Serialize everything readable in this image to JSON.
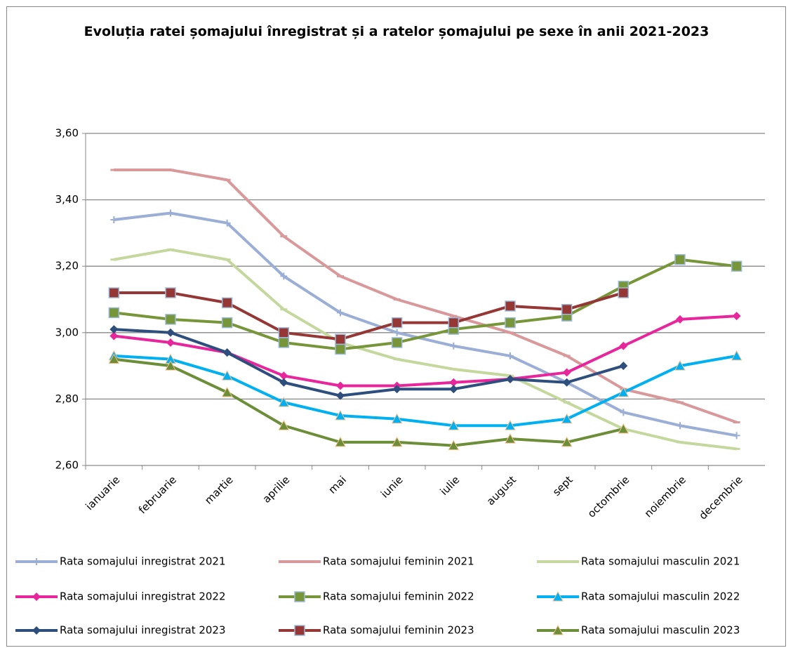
{
  "chart_data": {
    "type": "line",
    "title": "Evoluția ratei șomajului înregistrat și a ratelor șomajului pe sexe în anii 2021-2023",
    "categories": [
      "ianuarie",
      "februarie",
      "martie",
      "aprilie",
      "mai",
      "iunie",
      "iulie",
      "august",
      "sept",
      "octombrie",
      "noiembrie",
      "decembrie"
    ],
    "ylim": [
      2.6,
      3.6
    ],
    "yticks": [
      {
        "value": 2.6,
        "label": "2,60"
      },
      {
        "value": 2.8,
        "label": "2,80"
      },
      {
        "value": 3.0,
        "label": "3,00"
      },
      {
        "value": 3.2,
        "label": "3,20"
      },
      {
        "value": 3.4,
        "label": "3,40"
      },
      {
        "value": 3.6,
        "label": "3,60"
      }
    ],
    "grid": true,
    "legend": "bottom",
    "series": [
      {
        "name": "Rata somajului inregistrat 2021",
        "color": "#9aaed6",
        "marker": "plus",
        "values": [
          3.34,
          3.36,
          3.33,
          3.17,
          3.06,
          3.0,
          2.96,
          2.93,
          2.85,
          2.76,
          2.72,
          2.69
        ]
      },
      {
        "name": "Rata somajului feminin 2021",
        "color": "#d9999a",
        "marker": "dash",
        "values": [
          3.49,
          3.49,
          3.46,
          3.29,
          3.17,
          3.1,
          3.05,
          3.0,
          2.93,
          2.83,
          2.79,
          2.73
        ]
      },
      {
        "name": "Rata somajului masculin 2021",
        "color": "#c4d89e",
        "marker": "dash",
        "values": [
          3.22,
          3.25,
          3.22,
          3.07,
          2.97,
          2.92,
          2.89,
          2.87,
          2.79,
          2.71,
          2.67,
          2.65
        ]
      },
      {
        "name": "Rata somajului inregistrat 2022",
        "color": "#e8269c",
        "marker": "diamond",
        "values": [
          2.99,
          2.97,
          2.94,
          2.87,
          2.84,
          2.84,
          2.85,
          2.86,
          2.88,
          2.96,
          3.04,
          3.05
        ]
      },
      {
        "name": "Rata somajului feminin 2022",
        "color": "#77963a",
        "marker": "square",
        "values": [
          3.06,
          3.04,
          3.03,
          2.97,
          2.95,
          2.97,
          3.01,
          3.03,
          3.05,
          3.14,
          3.22,
          3.2
        ]
      },
      {
        "name": "Rata somajului masculin 2022",
        "color": "#00b0f0",
        "marker": "triangle",
        "values": [
          2.93,
          2.92,
          2.87,
          2.79,
          2.75,
          2.74,
          2.72,
          2.72,
          2.74,
          2.82,
          2.9,
          2.93
        ]
      },
      {
        "name": "Rata somajului inregistrat 2023",
        "color": "#2e4e7e",
        "marker": "diamond",
        "values": [
          3.01,
          3.0,
          2.94,
          2.85,
          2.81,
          2.83,
          2.83,
          2.86,
          2.85,
          2.9,
          null,
          null
        ]
      },
      {
        "name": "Rata somajului feminin 2023",
        "color": "#953735",
        "marker": "square",
        "values": [
          3.12,
          3.12,
          3.09,
          3.0,
          2.98,
          3.03,
          3.03,
          3.08,
          3.07,
          3.12,
          null,
          null
        ]
      },
      {
        "name": "Rata somajului masculin 2023",
        "color": "#6c8e38",
        "marker": "triangle",
        "values": [
          2.92,
          2.9,
          2.82,
          2.72,
          2.67,
          2.67,
          2.66,
          2.68,
          2.67,
          2.71,
          null,
          null
        ]
      }
    ]
  }
}
